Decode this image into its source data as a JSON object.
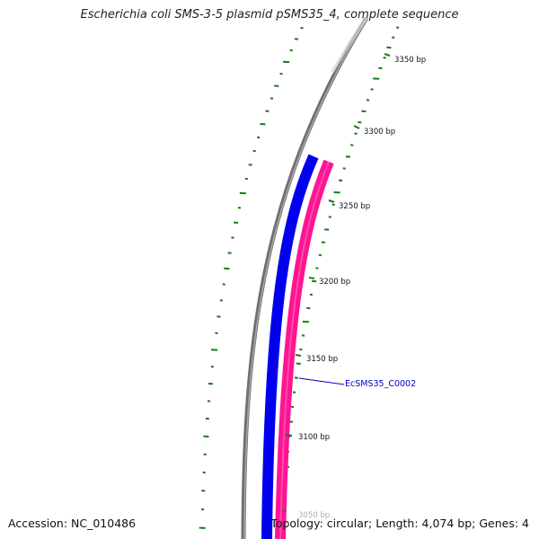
{
  "title": "Escherichia coli SMS-3-5 plasmid pSMS35_4, complete sequence",
  "accession": "Accession: NC_010486",
  "topology_info": "Topology: circular; Length: 4,074 bp; Genes: 4",
  "colors": {
    "backbone": "#888888",
    "gene_forward": "#0000ee",
    "gene_reverse": "#ff1493",
    "gc_ticks": "#1a7a1a",
    "gene_label": "#0000cc"
  },
  "ticks": [
    {
      "label": "3350 bp"
    },
    {
      "label": "3300 bp"
    },
    {
      "label": "3250 bp"
    },
    {
      "label": "3200 bp"
    },
    {
      "label": "3150 bp"
    },
    {
      "label": "3100 bp"
    },
    {
      "label": "3050 bp"
    }
  ],
  "genes": [
    {
      "label": "EcSMS35_C0002"
    }
  ]
}
